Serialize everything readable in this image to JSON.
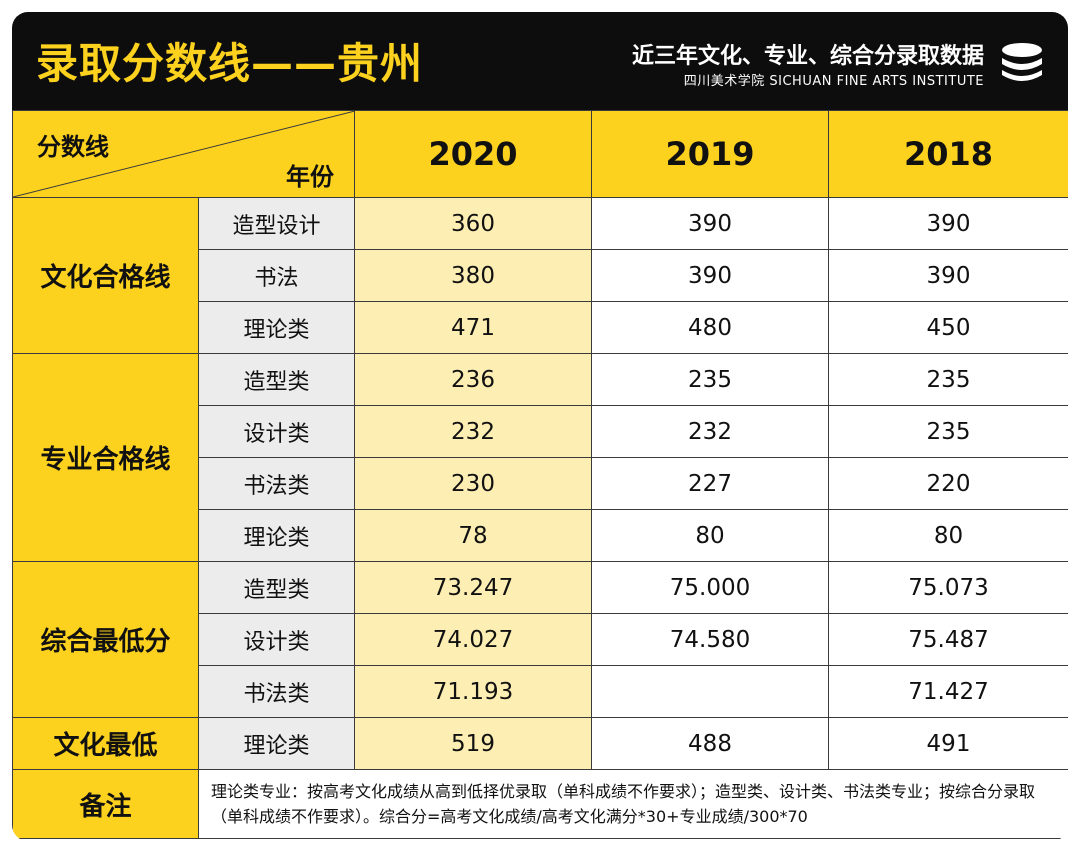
{
  "header": {
    "title": "录取分数线——贵州",
    "subtitle": "近三年文化、专业、综合分录取数据",
    "institute": "四川美术学院 SICHUAN FINE ARTS INSTITUTE"
  },
  "table": {
    "corner_top": "分数线",
    "corner_bottom": "年份",
    "years": [
      "2020",
      "2019",
      "2018"
    ],
    "groups": [
      {
        "name": "文化合格线",
        "rows": [
          {
            "label": "造型设计",
            "values": [
              "360",
              "390",
              "390"
            ]
          },
          {
            "label": "书法",
            "values": [
              "380",
              "390",
              "390"
            ]
          },
          {
            "label": "理论类",
            "values": [
              "471",
              "480",
              "450"
            ]
          }
        ]
      },
      {
        "name": "专业合格线",
        "rows": [
          {
            "label": "造型类",
            "values": [
              "236",
              "235",
              "235"
            ]
          },
          {
            "label": "设计类",
            "values": [
              "232",
              "232",
              "235"
            ]
          },
          {
            "label": "书法类",
            "values": [
              "230",
              "227",
              "220"
            ]
          },
          {
            "label": "理论类",
            "values": [
              "78",
              "80",
              "80"
            ]
          }
        ]
      },
      {
        "name": "综合最低分",
        "rows": [
          {
            "label": "造型类",
            "values": [
              "73.247",
              "75.000",
              "75.073"
            ]
          },
          {
            "label": "设计类",
            "values": [
              "74.027",
              "74.580",
              "75.487"
            ]
          },
          {
            "label": "书法类",
            "values": [
              "71.193",
              "",
              "71.427"
            ]
          }
        ]
      },
      {
        "name": "文化最低",
        "rows": [
          {
            "label": "理论类",
            "values": [
              "519",
              "488",
              "491"
            ]
          }
        ]
      }
    ],
    "note_label": "备注",
    "note_text": "理论类专业：按高考文化成绩从高到低择优录取（单科成绩不作要求）；造型类、设计类、书法类专业；按综合分录取（单科成绩不作要求）。综合分=高考文化成绩/高考文化满分*30+专业成绩/300*70"
  },
  "colors": {
    "accent": "#fdd21e",
    "highlight_column": "#fdeeb3",
    "header_bg": "#0d0d0d",
    "label_bg": "#ececec"
  }
}
